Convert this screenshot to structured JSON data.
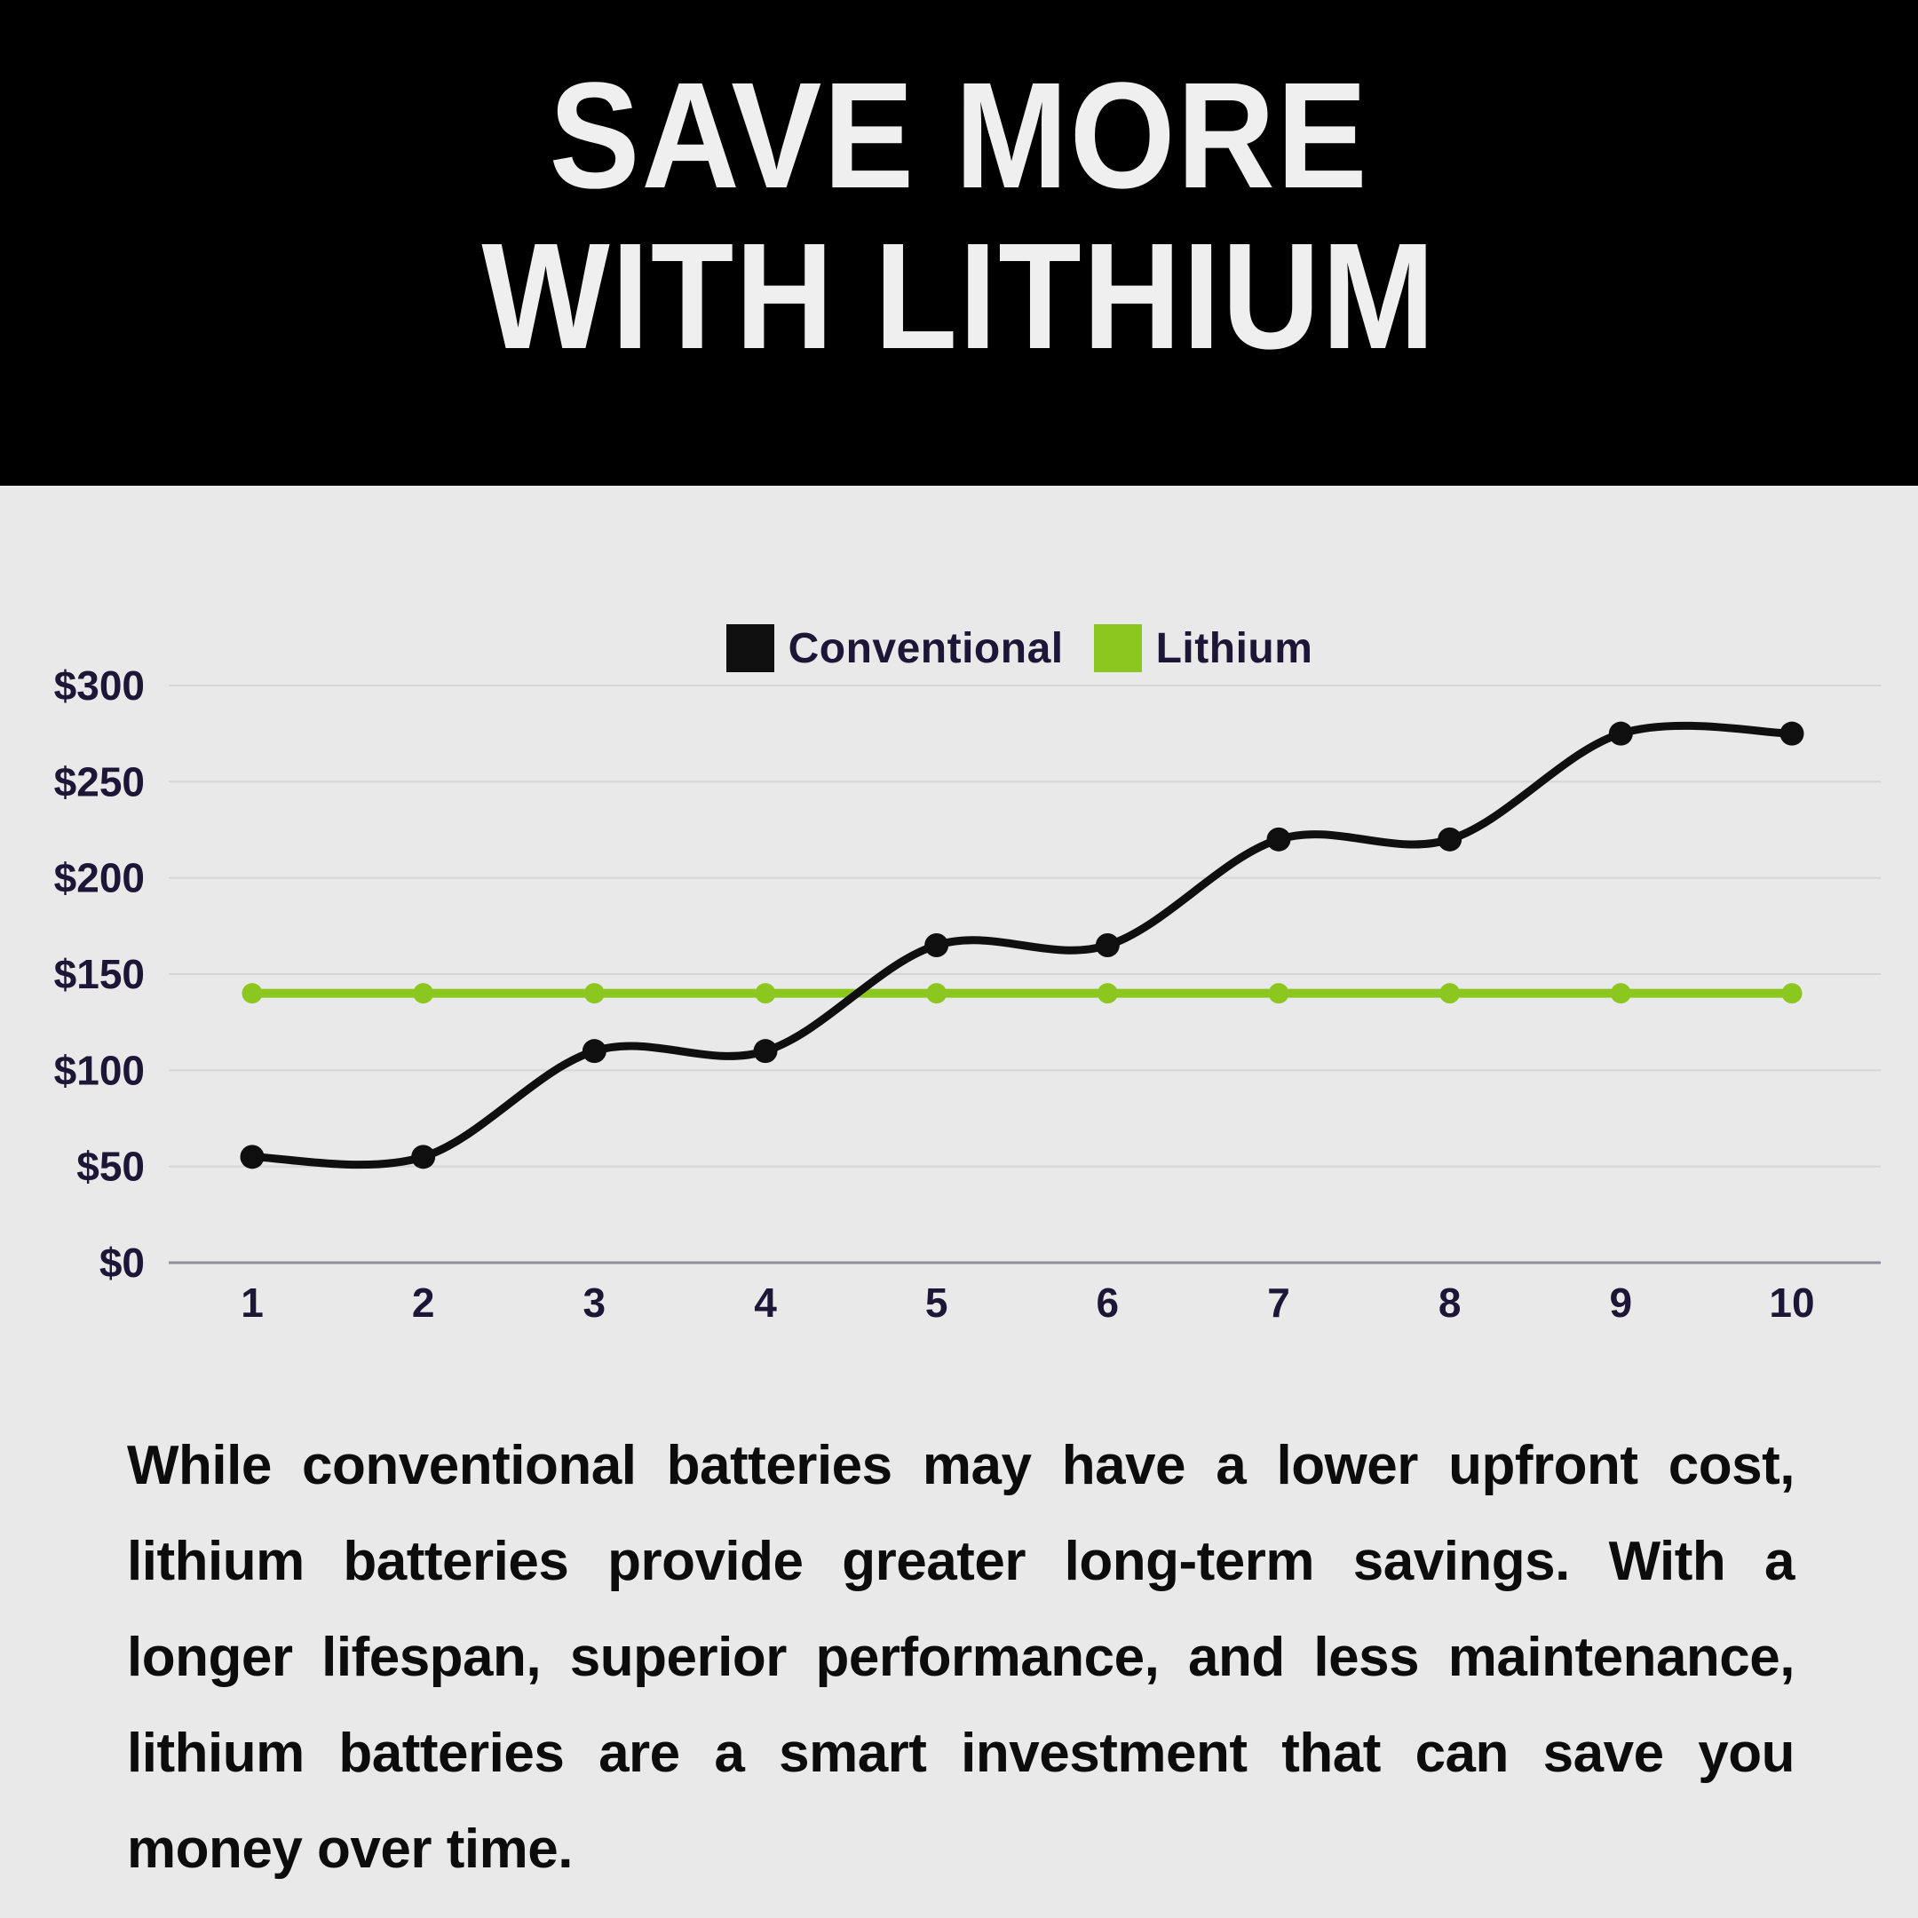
{
  "header": {
    "title_line1": "SAVE MORE",
    "title_line2": "WITH LITHIUM"
  },
  "chart_data": {
    "type": "line",
    "categories": [
      "1",
      "2",
      "3",
      "4",
      "5",
      "6",
      "7",
      "8",
      "9",
      "10"
    ],
    "series": [
      {
        "name": "Conventional",
        "color": "#0f0f0f",
        "values": [
          55,
          55,
          110,
          110,
          165,
          165,
          220,
          220,
          275,
          275
        ]
      },
      {
        "name": "Lithium",
        "color": "#8cc720",
        "values": [
          140,
          140,
          140,
          140,
          140,
          140,
          140,
          140,
          140,
          140
        ]
      }
    ],
    "y_ticks": [
      "$0",
      "$50",
      "$100",
      "$150",
      "$200",
      "$250",
      "$300"
    ],
    "ylim": [
      0,
      300
    ],
    "y_tick_step": 50,
    "grid": true,
    "legend_position": "top",
    "smooth": true
  },
  "description": {
    "text": "While conventional batteries may have a lower upfront cost, lithium batteries provide greater long-term savings. With a longer lifespan, superior performance, and less maintenance, lithium batteries are a smart investment that can save you money over time."
  },
  "colors": {
    "header_bg": "#000000",
    "header_text": "#efefef",
    "page_bg": "#e9e9e9",
    "axis_text": "#1e1636",
    "gridline": "#d5d5d8",
    "axis_line": "#8e8e9c",
    "body_text": "#0c0c0c"
  }
}
